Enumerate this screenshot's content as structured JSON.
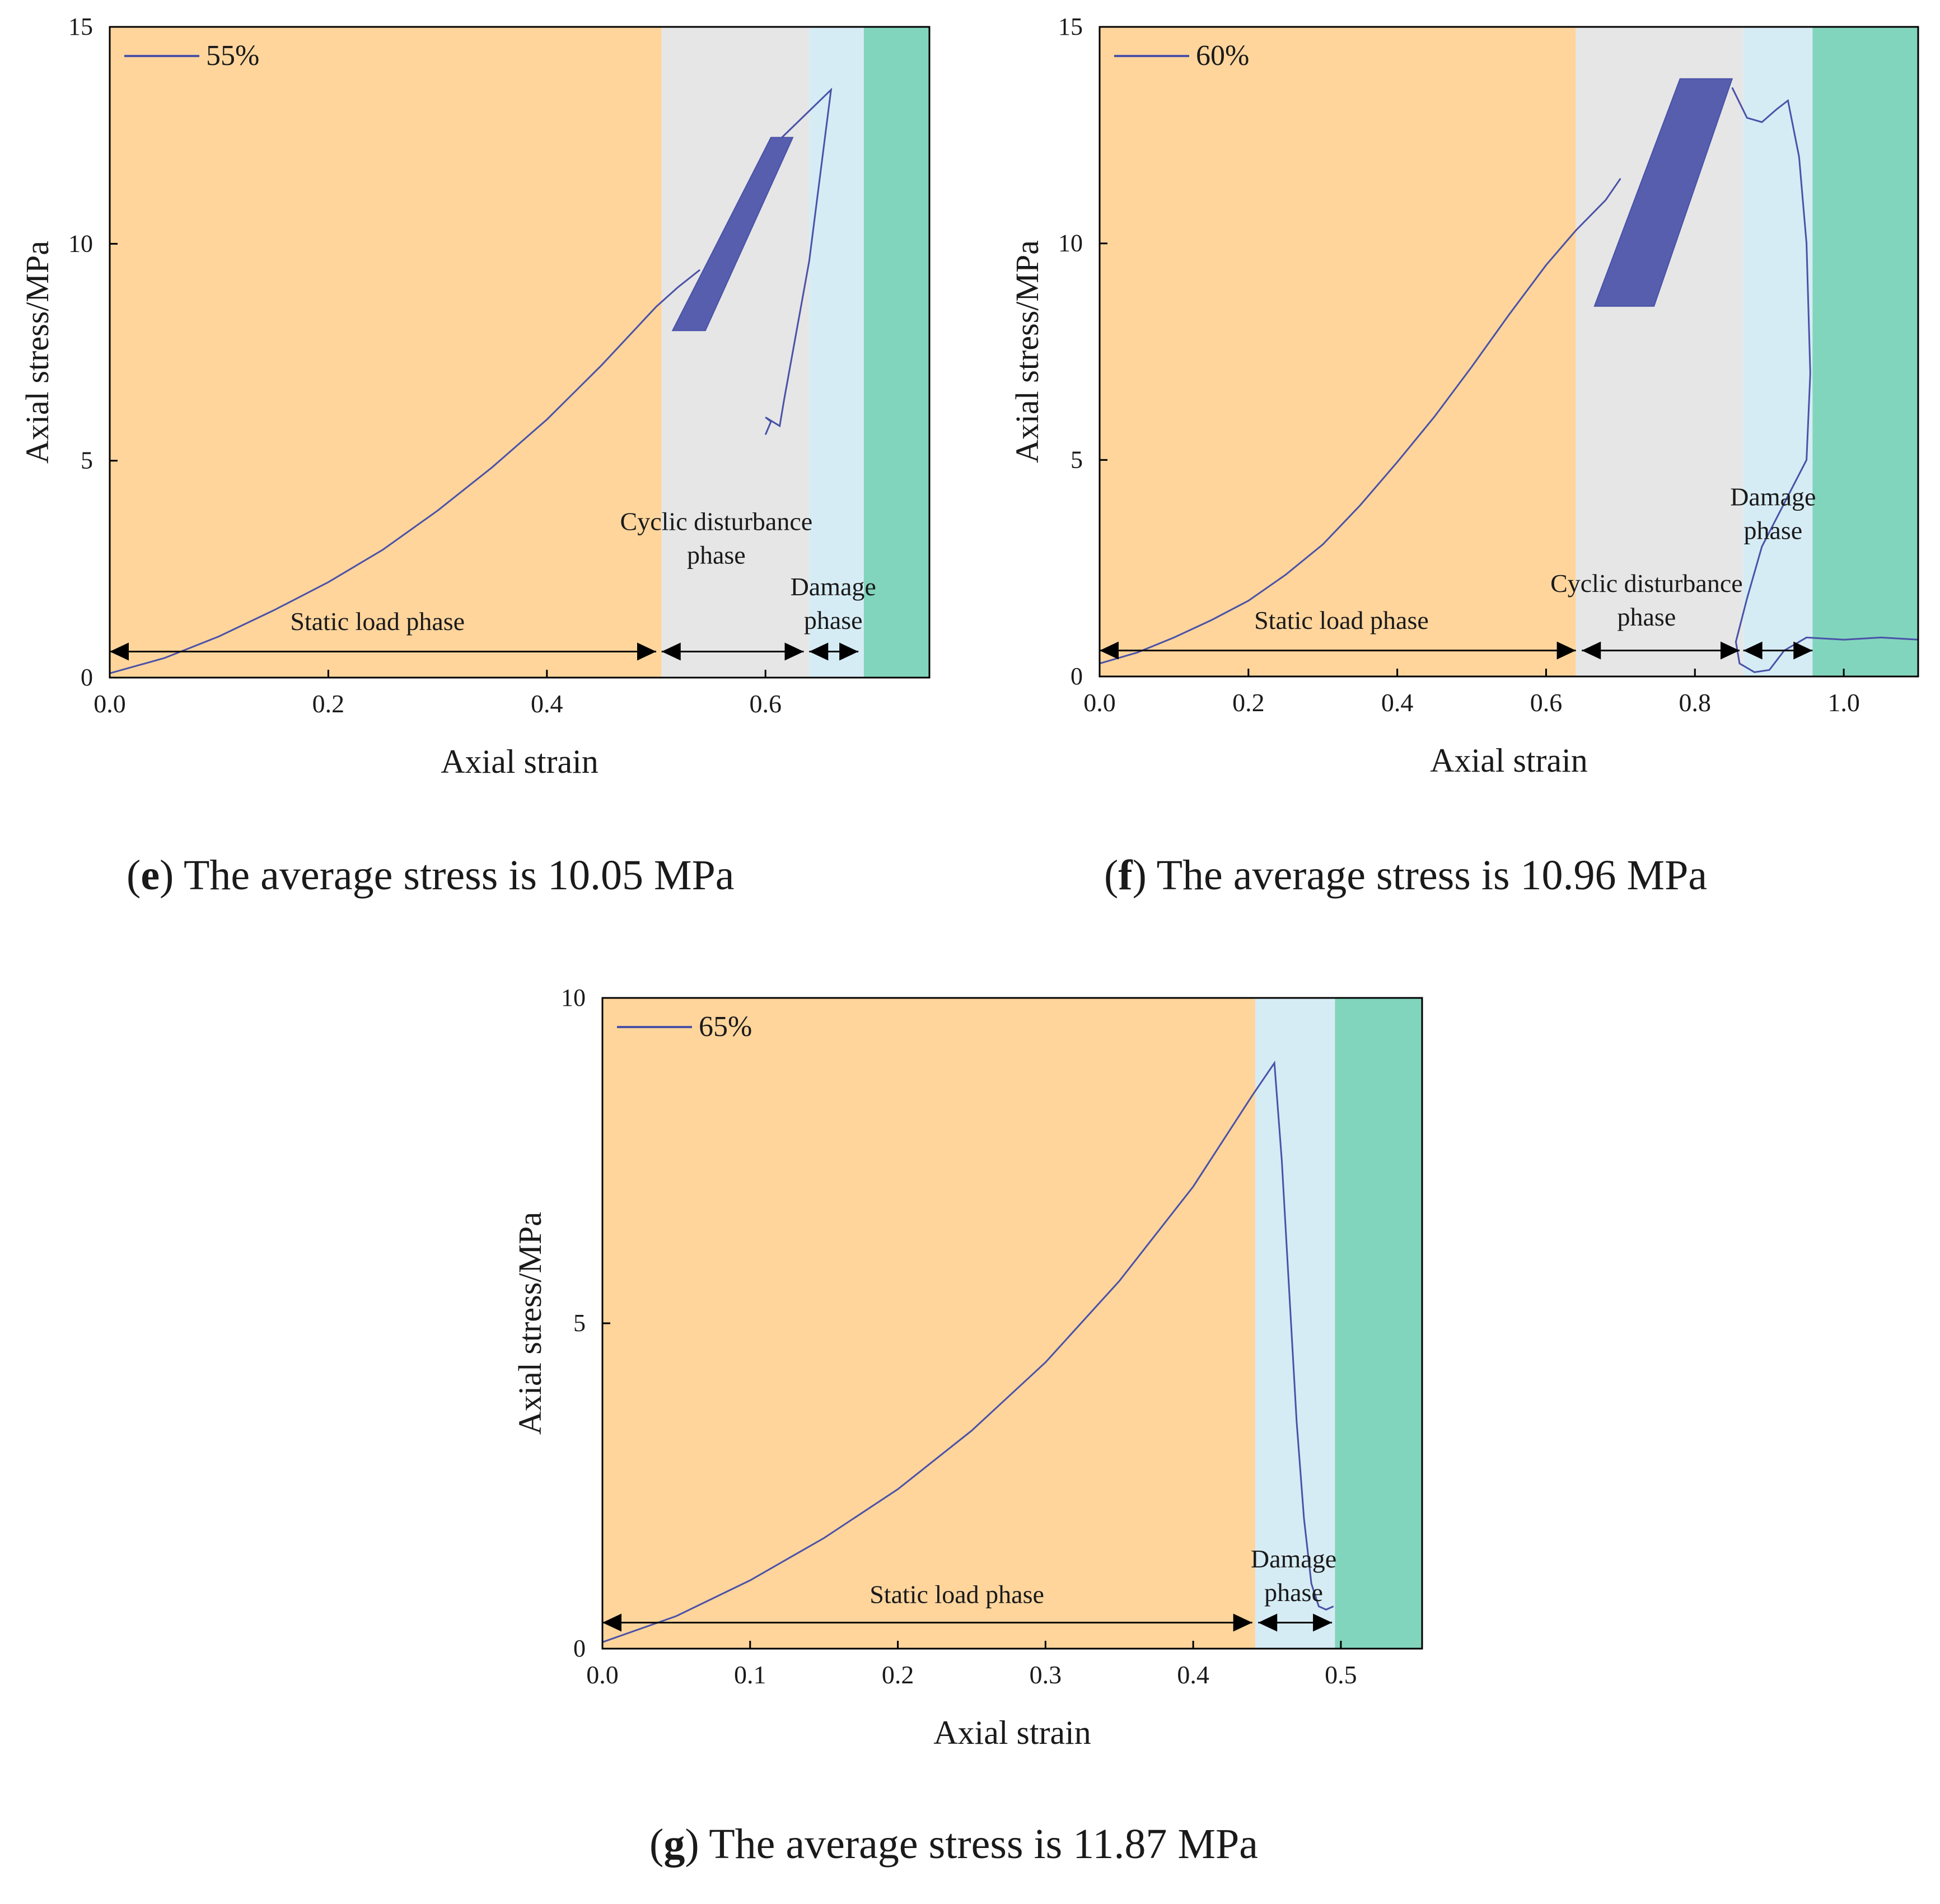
{
  "captions": {
    "e": {
      "letter": "e",
      "text": "The average stress is 10.05 MPa"
    },
    "f": {
      "letter": "f",
      "text": "The average stress is 10.96 MPa"
    },
    "g": {
      "letter": "g",
      "text": "The average stress is 11.87 MPa"
    }
  },
  "colors": {
    "static": "#ffd59c",
    "cyclic": "#e6e6e6",
    "damage": "#d6ecf5",
    "failure": "#82d5bd",
    "curve": "#4a52a8",
    "axis": "#000000"
  },
  "chart_data": [
    {
      "id": "e",
      "type": "line",
      "xlabel": "Axial strain",
      "ylabel": "Axial stress/MPa",
      "xlim": [
        0,
        0.75
      ],
      "ylim": [
        0,
        15
      ],
      "xticks": [
        "0.0",
        "0.2",
        "0.4",
        "0.6"
      ],
      "xtick_values": [
        0,
        0.2,
        0.4,
        0.6
      ],
      "yticks": [
        "0",
        "5",
        "10",
        "15"
      ],
      "ytick_values": [
        0,
        5,
        10,
        15
      ],
      "series": [
        {
          "name": "55%",
          "x": [
            0,
            0.05,
            0.1,
            0.15,
            0.2,
            0.25,
            0.3,
            0.35,
            0.4,
            0.45,
            0.5,
            0.52,
            0.54
          ],
          "y": [
            0.1,
            0.45,
            0.95,
            1.55,
            2.2,
            2.95,
            3.85,
            4.85,
            5.95,
            7.2,
            8.55,
            9.0,
            9.4
          ]
        }
      ],
      "cyclic_band": {
        "x0": 0.515,
        "y0": 8.0,
        "x1": 0.625,
        "y1": 12.45,
        "x_low_end": 0.545,
        "x_high_start": 0.605
      },
      "post_peak": {
        "x": [
          0.615,
          0.66,
          0.64,
          0.617,
          0.613,
          0.6,
          0.605,
          0.6
        ],
        "y": [
          12.45,
          13.55,
          9.6,
          6.4,
          5.8,
          6.0,
          5.9,
          5.6
        ]
      },
      "phases": [
        {
          "name": "static",
          "x0": 0,
          "x1": 0.505
        },
        {
          "name": "cyclic",
          "x0": 0.505,
          "x1": 0.64
        },
        {
          "name": "damage",
          "x0": 0.64,
          "x1": 0.69
        },
        {
          "name": "failure",
          "x0": 0.69,
          "x1": 0.75
        }
      ],
      "arrow_y": 0.6,
      "arrows": [
        [
          0,
          0.5
        ],
        [
          0.505,
          0.635
        ],
        [
          0.64,
          0.685
        ]
      ],
      "labels": [
        {
          "lines": [
            "Static load phase"
          ],
          "x": 0.245,
          "y": 1.1
        },
        {
          "lines": [
            "Cyclic disturbance",
            "phase"
          ],
          "x": 0.555,
          "y": 3.4
        },
        {
          "lines": [
            "Damage",
            "phase"
          ],
          "x": 0.662,
          "y": 1.9
        }
      ]
    },
    {
      "id": "f",
      "type": "line",
      "xlabel": "Axial strain",
      "ylabel": "Axial stress/MPa",
      "xlim": [
        0,
        1.1
      ],
      "ylim": [
        0,
        15
      ],
      "xticks": [
        "0.0",
        "0.2",
        "0.4",
        "0.6",
        "0.8",
        "1.0"
      ],
      "xtick_values": [
        0,
        0.2,
        0.4,
        0.6,
        0.8,
        1.0
      ],
      "yticks": [
        "0",
        "5",
        "10",
        "15"
      ],
      "ytick_values": [
        0,
        5,
        10,
        15
      ],
      "series": [
        {
          "name": "60%",
          "x": [
            0,
            0.05,
            0.1,
            0.15,
            0.2,
            0.25,
            0.3,
            0.35,
            0.4,
            0.45,
            0.5,
            0.55,
            0.6,
            0.64,
            0.68,
            0.7
          ],
          "y": [
            0.3,
            0.55,
            0.9,
            1.3,
            1.75,
            2.35,
            3.05,
            3.95,
            4.95,
            6.0,
            7.15,
            8.35,
            9.5,
            10.3,
            11.0,
            11.5
          ]
        }
      ],
      "cyclic_band": {
        "x0": 0.665,
        "y0": 8.55,
        "x1": 0.85,
        "y1": 13.8,
        "x_low_end": 0.745,
        "x_high_start": 0.78
      },
      "post_peak": {
        "x": [
          0.85,
          0.87,
          0.89,
          0.91,
          0.925,
          0.94,
          0.95,
          0.955,
          0.95,
          0.92,
          0.89,
          0.87,
          0.855,
          0.86,
          0.88,
          0.9,
          0.92,
          0.95,
          1.0,
          1.05,
          1.1
        ],
        "y": [
          13.6,
          12.9,
          12.8,
          13.1,
          13.3,
          12.0,
          10.0,
          7.0,
          5.0,
          4.0,
          3.0,
          1.8,
          0.8,
          0.3,
          0.1,
          0.15,
          0.6,
          0.9,
          0.85,
          0.9,
          0.85
        ]
      },
      "phases": [
        {
          "name": "static",
          "x0": 0,
          "x1": 0.64
        },
        {
          "name": "cyclic",
          "x0": 0.64,
          "x1": 0.865
        },
        {
          "name": "damage",
          "x0": 0.865,
          "x1": 0.958
        },
        {
          "name": "failure",
          "x0": 0.958,
          "x1": 1.1
        }
      ],
      "arrow_y": 0.6,
      "arrows": [
        [
          0,
          0.64
        ],
        [
          0.648,
          0.86
        ],
        [
          0.865,
          0.958
        ]
      ],
      "labels": [
        {
          "lines": [
            "Static load phase"
          ],
          "x": 0.325,
          "y": 1.1
        },
        {
          "lines": [
            "Cyclic disturbance",
            "phase"
          ],
          "x": 0.735,
          "y": 1.95
        },
        {
          "lines": [
            "Damage",
            "phase"
          ],
          "x": 0.905,
          "y": 3.95
        }
      ]
    },
    {
      "id": "g",
      "type": "line",
      "xlabel": "Axial strain",
      "ylabel": "Axial stress/MPa",
      "xlim": [
        0,
        0.555
      ],
      "ylim": [
        0,
        10
      ],
      "xticks": [
        "0.0",
        "0.1",
        "0.2",
        "0.3",
        "0.4",
        "0.5"
      ],
      "xtick_values": [
        0,
        0.1,
        0.2,
        0.3,
        0.4,
        0.5
      ],
      "yticks": [
        "0",
        "5",
        "10"
      ],
      "ytick_values": [
        0,
        5,
        10
      ],
      "series": [
        {
          "name": "65%",
          "x": [
            0,
            0.05,
            0.1,
            0.15,
            0.2,
            0.25,
            0.3,
            0.35,
            0.4,
            0.44,
            0.455,
            0.46,
            0.465,
            0.47,
            0.475,
            0.48,
            0.485,
            0.49,
            0.495
          ],
          "y": [
            0.1,
            0.5,
            1.05,
            1.7,
            2.45,
            3.35,
            4.4,
            5.65,
            7.1,
            8.5,
            9.0,
            7.5,
            5.5,
            3.5,
            2.0,
            1.0,
            0.65,
            0.6,
            0.65
          ]
        }
      ],
      "phases": [
        {
          "name": "static",
          "x0": 0,
          "x1": 0.442
        },
        {
          "name": "damage",
          "x0": 0.442,
          "x1": 0.496
        },
        {
          "name": "failure",
          "x0": 0.496,
          "x1": 0.555
        }
      ],
      "arrow_y": 0.4,
      "arrows": [
        [
          0,
          0.44
        ],
        [
          0.444,
          0.494
        ]
      ],
      "labels": [
        {
          "lines": [
            "Static load phase"
          ],
          "x": 0.24,
          "y": 0.7
        },
        {
          "lines": [
            "Damage",
            "phase"
          ],
          "x": 0.468,
          "y": 1.25
        }
      ]
    }
  ]
}
